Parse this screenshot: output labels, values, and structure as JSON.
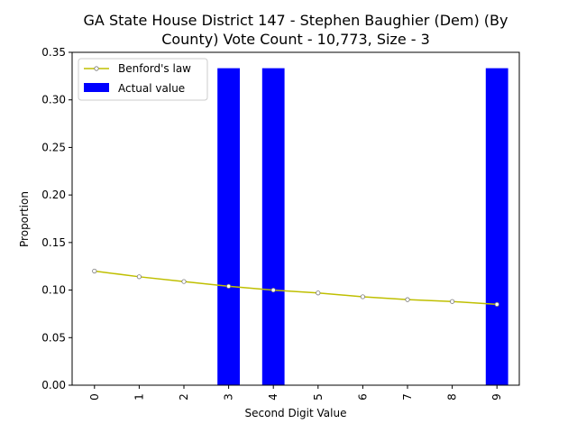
{
  "chart_data": {
    "type": "bar",
    "title_lines": [
      "GA State House District 147 - Stephen Baughier (Dem) (By",
      "County) Vote Count - 10,773, Size - 3"
    ],
    "xlabel": "Second Digit Value",
    "ylabel": "Proportion",
    "categories": [
      "0",
      "1",
      "2",
      "3",
      "4",
      "5",
      "6",
      "7",
      "8",
      "9"
    ],
    "ylim": [
      0,
      0.35
    ],
    "yticks": [
      "0.00",
      "0.05",
      "0.10",
      "0.15",
      "0.20",
      "0.25",
      "0.30",
      "0.35"
    ],
    "legend_position": "upper-left",
    "series": [
      {
        "name": "Benford's law",
        "kind": "line",
        "color": "#bfbf00",
        "values": [
          0.12,
          0.114,
          0.109,
          0.104,
          0.1,
          0.097,
          0.093,
          0.09,
          0.088,
          0.085
        ]
      },
      {
        "name": "Actual value",
        "kind": "bar",
        "color": "#0000ff",
        "values": [
          0,
          0,
          0,
          0.3333,
          0.3333,
          0,
          0,
          0,
          0,
          0.3333
        ]
      }
    ]
  }
}
